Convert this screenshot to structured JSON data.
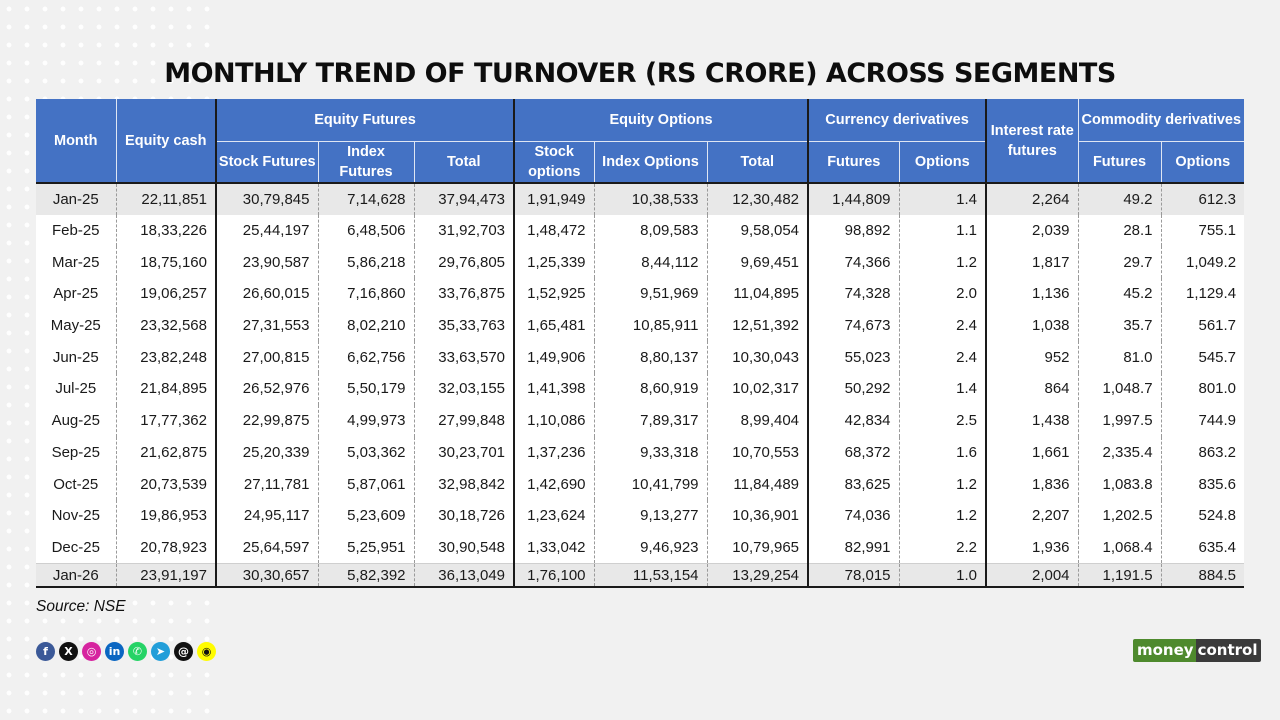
{
  "title": "MONTHLY TREND OF TURNOVER (RS CRORE) ACROSS SEGMENTS",
  "headers": {
    "month": "Month",
    "equity_cash": "Equity cash",
    "equity_futures": "Equity Futures",
    "equity_options": "Equity Options",
    "currency_derivatives": "Currency derivatives",
    "interest_rate_futures": "Interest rate futures",
    "commodity_derivatives": "Commodity derivatives",
    "stock_futures": "Stock Futures",
    "index_futures": "Index Futures",
    "total": "Total",
    "stock_options": "Stock options",
    "index_options": "Index Options",
    "futures": "Futures",
    "options": "Options"
  },
  "rows": [
    [
      "Jan-25",
      "22,11,851",
      "30,79,845",
      "7,14,628",
      "37,94,473",
      "1,91,949",
      "10,38,533",
      "12,30,482",
      "1,44,809",
      "1.4",
      "2,264",
      "49.2",
      "612.3"
    ],
    [
      "Feb-25",
      "18,33,226",
      "25,44,197",
      "6,48,506",
      "31,92,703",
      "1,48,472",
      "8,09,583",
      "9,58,054",
      "98,892",
      "1.1",
      "2,039",
      "28.1",
      "755.1"
    ],
    [
      "Mar-25",
      "18,75,160",
      "23,90,587",
      "5,86,218",
      "29,76,805",
      "1,25,339",
      "8,44,112",
      "9,69,451",
      "74,366",
      "1.2",
      "1,817",
      "29.7",
      "1,049.2"
    ],
    [
      "Apr-25",
      "19,06,257",
      "26,60,015",
      "7,16,860",
      "33,76,875",
      "1,52,925",
      "9,51,969",
      "11,04,895",
      "74,328",
      "2.0",
      "1,136",
      "45.2",
      "1,129.4"
    ],
    [
      "May-25",
      "23,32,568",
      "27,31,553",
      "8,02,210",
      "35,33,763",
      "1,65,481",
      "10,85,911",
      "12,51,392",
      "74,673",
      "2.4",
      "1,038",
      "35.7",
      "561.7"
    ],
    [
      "Jun-25",
      "23,82,248",
      "27,00,815",
      "6,62,756",
      "33,63,570",
      "1,49,906",
      "8,80,137",
      "10,30,043",
      "55,023",
      "2.4",
      "952",
      "81.0",
      "545.7"
    ],
    [
      "Jul-25",
      "21,84,895",
      "26,52,976",
      "5,50,179",
      "32,03,155",
      "1,41,398",
      "8,60,919",
      "10,02,317",
      "50,292",
      "1.4",
      "864",
      "1,048.7",
      "801.0"
    ],
    [
      "Aug-25",
      "17,77,362",
      "22,99,875",
      "4,99,973",
      "27,99,848",
      "1,10,086",
      "7,89,317",
      "8,99,404",
      "42,834",
      "2.5",
      "1,438",
      "1,997.5",
      "744.9"
    ],
    [
      "Sep-25",
      "21,62,875",
      "25,20,339",
      "5,03,362",
      "30,23,701",
      "1,37,236",
      "9,33,318",
      "10,70,553",
      "68,372",
      "1.6",
      "1,661",
      "2,335.4",
      "863.2"
    ],
    [
      "Oct-25",
      "20,73,539",
      "27,11,781",
      "5,87,061",
      "32,98,842",
      "1,42,690",
      "10,41,799",
      "11,84,489",
      "83,625",
      "1.2",
      "1,836",
      "1,083.8",
      "835.6"
    ],
    [
      "Nov-25",
      "19,86,953",
      "24,95,117",
      "5,23,609",
      "30,18,726",
      "1,23,624",
      "9,13,277",
      "10,36,901",
      "74,036",
      "1.2",
      "2,207",
      "1,202.5",
      "524.8"
    ],
    [
      "Dec-25",
      "20,78,923",
      "25,64,597",
      "5,25,951",
      "30,90,548",
      "1,33,042",
      "9,46,923",
      "10,79,965",
      "82,991",
      "2.2",
      "1,936",
      "1,068.4",
      "635.4"
    ],
    [
      "Jan-26",
      "23,91,197",
      "30,30,657",
      "5,82,392",
      "36,13,049",
      "1,76,100",
      "11,53,154",
      "13,29,254",
      "78,015",
      "1.0",
      "2,004",
      "1,191.5",
      "884.5"
    ]
  ],
  "source": "Source: NSE",
  "socials": [
    {
      "icon": "facebook-icon",
      "glyph": "f",
      "color": "#3b5998"
    },
    {
      "icon": "x-icon",
      "glyph": "X",
      "color": "#111111"
    },
    {
      "icon": "instagram-icon",
      "glyph": "◎",
      "color": "#d6249f"
    },
    {
      "icon": "linkedin-icon",
      "glyph": "in",
      "color": "#0a66c2"
    },
    {
      "icon": "whatsapp-icon",
      "glyph": "✆",
      "color": "#25d366"
    },
    {
      "icon": "telegram-icon",
      "glyph": "➤",
      "color": "#229ed9"
    },
    {
      "icon": "threads-icon",
      "glyph": "@",
      "color": "#111111"
    },
    {
      "icon": "snapchat-icon",
      "glyph": "◉",
      "color": "#fffc00"
    }
  ],
  "logo": {
    "part1": "money",
    "part2": "control"
  }
}
